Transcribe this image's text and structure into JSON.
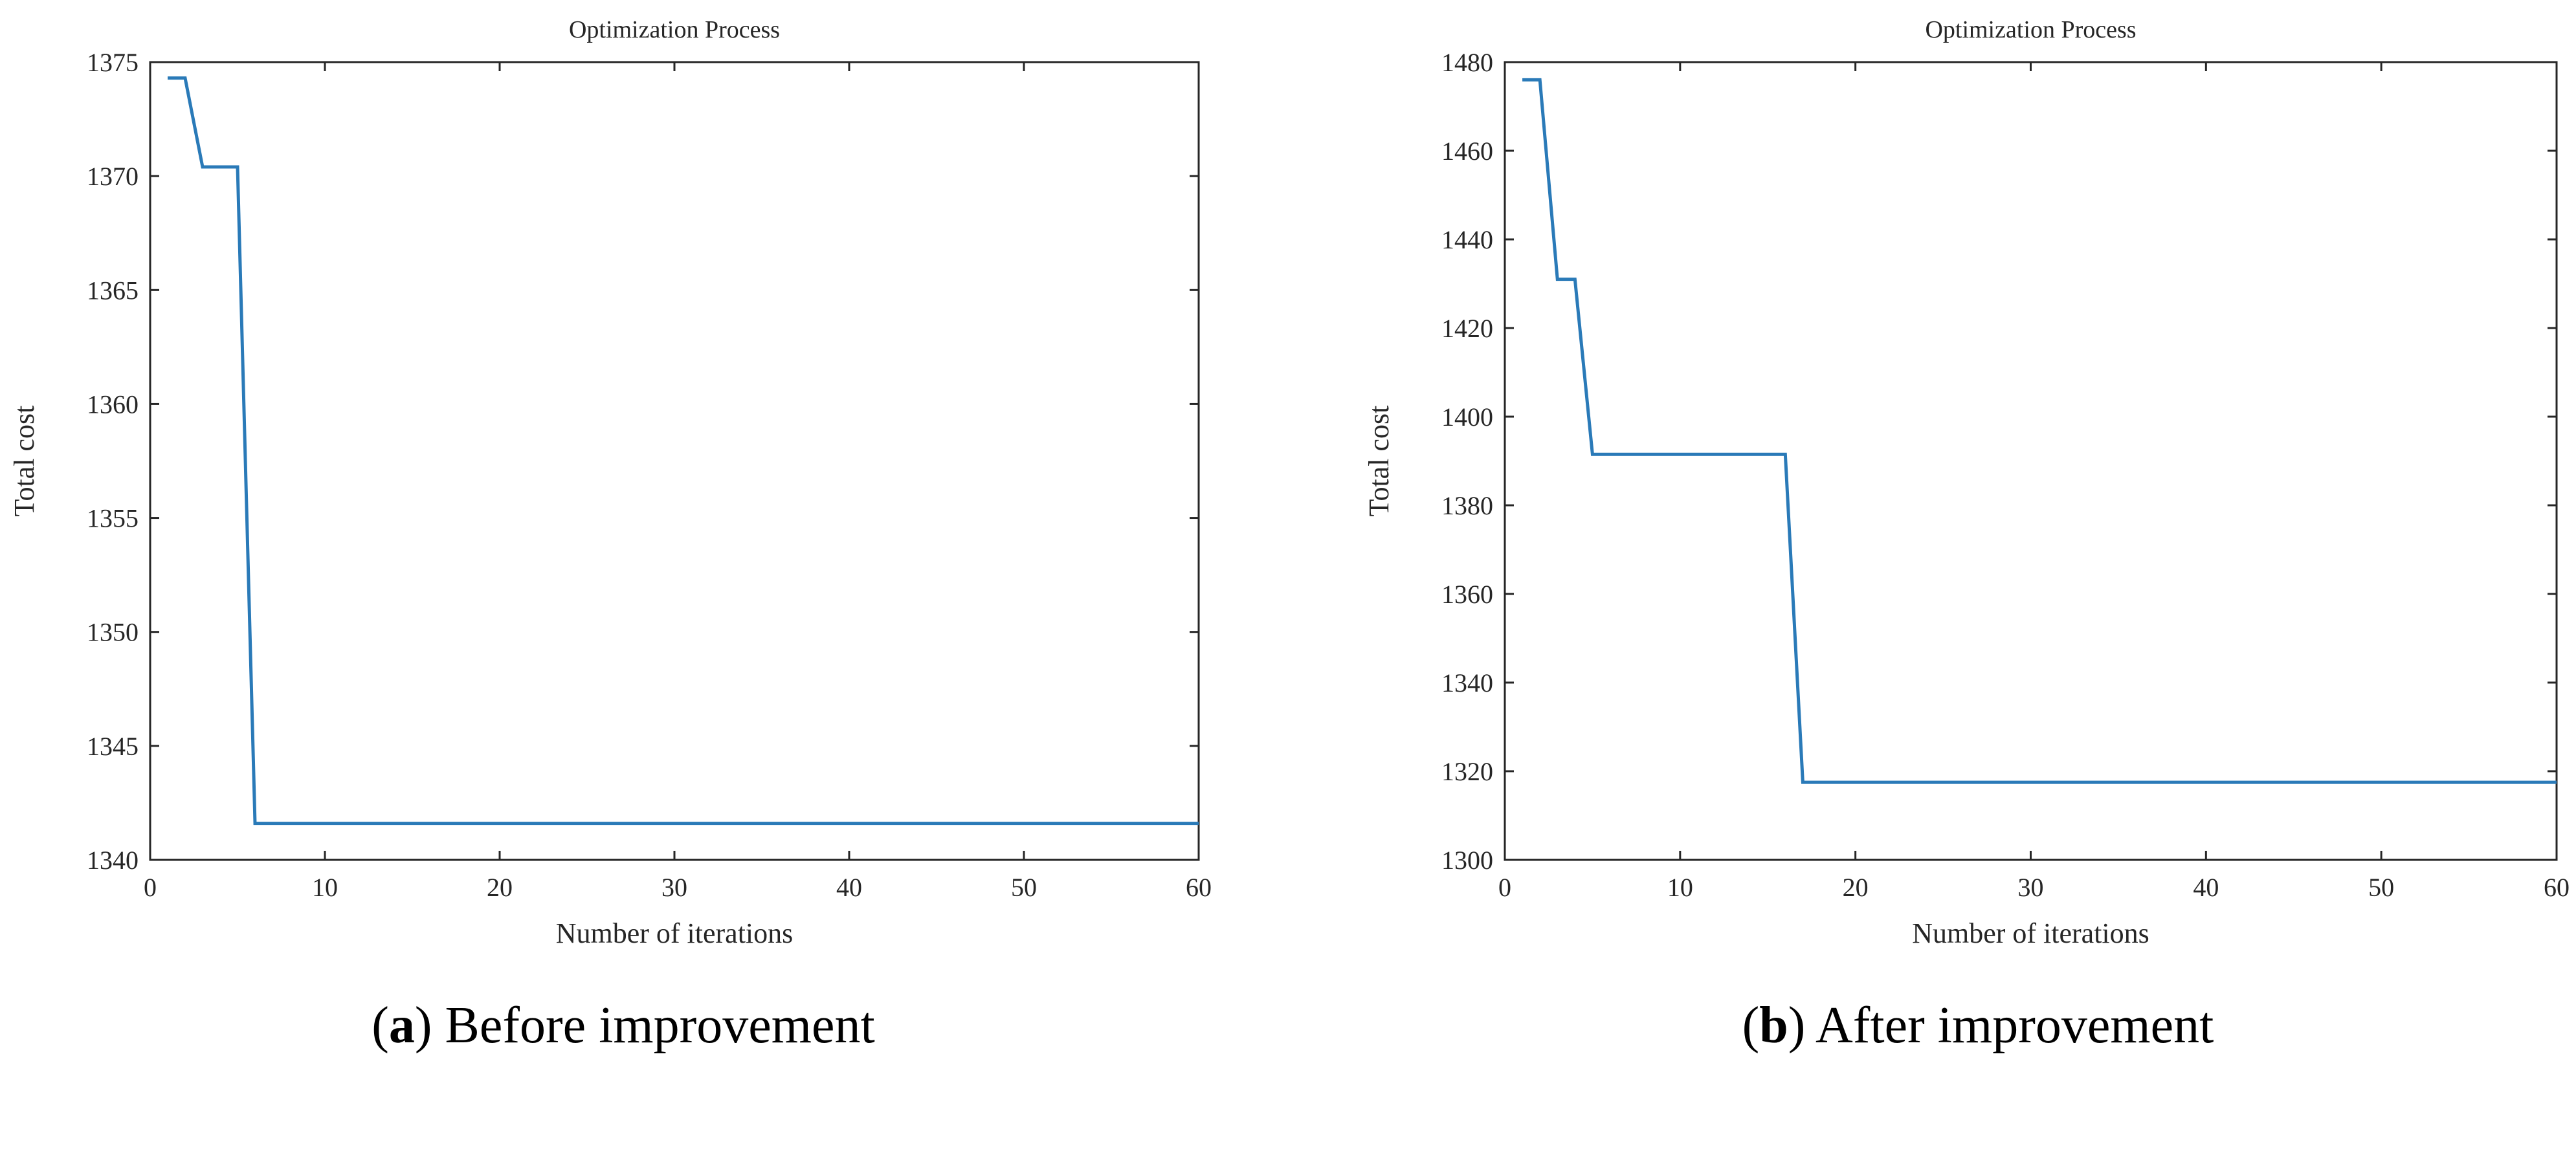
{
  "chart_data": [
    {
      "type": "line",
      "title": "Optimization Process",
      "xlabel": "Number of iterations",
      "ylabel": "Total cost",
      "xlim": [
        0,
        60
      ],
      "ylim": [
        1340,
        1375
      ],
      "xticks": [
        0,
        10,
        20,
        30,
        40,
        50,
        60
      ],
      "yticks": [
        1340,
        1345,
        1350,
        1355,
        1360,
        1365,
        1370,
        1375
      ],
      "grid": false,
      "color": "#2a7ab8",
      "series": [
        {
          "x": [
            1,
            2,
            3,
            4,
            5,
            6,
            60
          ],
          "y": [
            1374.3,
            1374.3,
            1370.4,
            1370.4,
            1370.4,
            1341.6,
            1341.6
          ]
        }
      ],
      "caption": {
        "letter": "a",
        "text": "Before improvement"
      }
    },
    {
      "type": "line",
      "title": "Optimization Process",
      "xlabel": "Number of iterations",
      "ylabel": "Total cost",
      "xlim": [
        0,
        60
      ],
      "ylim": [
        1300,
        1480
      ],
      "xticks": [
        0,
        10,
        20,
        30,
        40,
        50,
        60
      ],
      "yticks": [
        1300,
        1320,
        1340,
        1360,
        1380,
        1400,
        1420,
        1440,
        1460,
        1480
      ],
      "grid": false,
      "color": "#2a7ab8",
      "series": [
        {
          "x": [
            1,
            2,
            3,
            4,
            5,
            16,
            17,
            60
          ],
          "y": [
            1476,
            1476,
            1431,
            1431,
            1391.5,
            1391.5,
            1317.5,
            1317.5
          ]
        }
      ],
      "caption": {
        "letter": "b",
        "text": "After improvement"
      }
    }
  ]
}
